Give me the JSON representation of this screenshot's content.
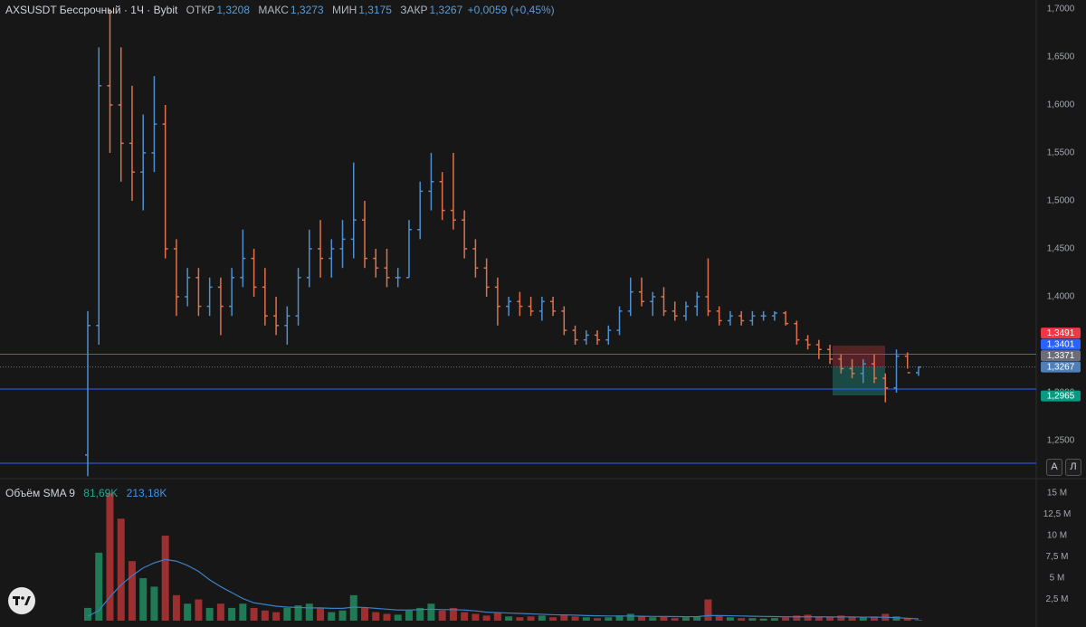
{
  "header": {
    "symbol": "AXSUSDT Бессрочный · 1Ч · Bybit",
    "ohlc": [
      {
        "label": "ОТКР",
        "value": "1,3208"
      },
      {
        "label": "МАКС",
        "value": "1,3273"
      },
      {
        "label": "МИН",
        "value": "1,3175"
      },
      {
        "label": "ЗАКР",
        "value": "1,3267"
      }
    ],
    "change": "+0,0059 (+0,45%)",
    "buttons": [
      "А",
      "Л"
    ]
  },
  "chart_data": [
    {
      "type": "ohlc",
      "up_color": "#4f8fcf",
      "down_color": "#e0714c",
      "grid": false,
      "open": [
        1.235,
        1.37,
        1.62,
        1.6,
        1.56,
        1.53,
        1.55,
        1.58,
        1.45,
        1.4,
        1.42,
        1.39,
        1.41,
        1.39,
        1.42,
        1.44,
        1.41,
        1.38,
        1.37,
        1.38,
        1.42,
        1.45,
        1.44,
        1.45,
        1.46,
        1.48,
        1.44,
        1.43,
        1.42,
        1.42,
        1.47,
        1.51,
        1.52,
        1.49,
        1.48,
        1.45,
        1.43,
        1.41,
        1.39,
        1.395,
        1.39,
        1.385,
        1.395,
        1.385,
        1.365,
        1.355,
        1.36,
        1.355,
        1.365,
        1.385,
        1.405,
        1.395,
        1.4,
        1.385,
        1.38,
        1.39,
        1.4,
        1.385,
        1.375,
        1.38,
        1.375,
        1.38,
        1.38,
        1.383,
        1.372,
        1.355,
        1.35,
        1.345,
        1.335,
        1.325,
        1.32,
        1.33,
        1.315,
        1.305,
        1.338,
        1.3208
      ],
      "high": [
        1.385,
        1.66,
        1.7,
        1.66,
        1.62,
        1.59,
        1.63,
        1.6,
        1.46,
        1.43,
        1.43,
        1.42,
        1.42,
        1.43,
        1.47,
        1.45,
        1.43,
        1.4,
        1.39,
        1.43,
        1.47,
        1.48,
        1.46,
        1.48,
        1.54,
        1.5,
        1.45,
        1.45,
        1.43,
        1.48,
        1.52,
        1.55,
        1.53,
        1.55,
        1.49,
        1.46,
        1.44,
        1.42,
        1.4,
        1.405,
        1.4,
        1.4,
        1.4,
        1.39,
        1.37,
        1.365,
        1.365,
        1.37,
        1.39,
        1.42,
        1.42,
        1.405,
        1.41,
        1.395,
        1.395,
        1.405,
        1.44,
        1.39,
        1.385,
        1.385,
        1.385,
        1.385,
        1.385,
        1.385,
        1.375,
        1.36,
        1.355,
        1.35,
        1.34,
        1.335,
        1.335,
        1.34,
        1.32,
        1.345,
        1.342,
        1.3273
      ],
      "low": [
        1.213,
        1.35,
        1.55,
        1.52,
        1.5,
        1.49,
        1.53,
        1.44,
        1.38,
        1.39,
        1.38,
        1.38,
        1.36,
        1.38,
        1.41,
        1.4,
        1.37,
        1.36,
        1.35,
        1.37,
        1.41,
        1.42,
        1.42,
        1.43,
        1.44,
        1.43,
        1.42,
        1.41,
        1.41,
        1.42,
        1.46,
        1.49,
        1.48,
        1.47,
        1.44,
        1.42,
        1.4,
        1.37,
        1.38,
        1.38,
        1.38,
        1.375,
        1.38,
        1.36,
        1.35,
        1.35,
        1.35,
        1.35,
        1.36,
        1.38,
        1.39,
        1.38,
        1.38,
        1.375,
        1.375,
        1.38,
        1.38,
        1.37,
        1.37,
        1.37,
        1.37,
        1.375,
        1.375,
        1.37,
        1.35,
        1.345,
        1.335,
        1.33,
        1.32,
        1.315,
        1.31,
        1.31,
        1.29,
        1.3,
        1.325,
        1.3175
      ],
      "close": [
        1.37,
        1.62,
        1.6,
        1.56,
        1.53,
        1.55,
        1.58,
        1.45,
        1.4,
        1.42,
        1.39,
        1.41,
        1.39,
        1.42,
        1.44,
        1.41,
        1.38,
        1.37,
        1.38,
        1.42,
        1.45,
        1.44,
        1.45,
        1.46,
        1.48,
        1.44,
        1.43,
        1.42,
        1.42,
        1.47,
        1.51,
        1.52,
        1.49,
        1.48,
        1.45,
        1.43,
        1.41,
        1.39,
        1.395,
        1.39,
        1.385,
        1.395,
        1.385,
        1.365,
        1.355,
        1.36,
        1.355,
        1.365,
        1.385,
        1.405,
        1.395,
        1.4,
        1.385,
        1.38,
        1.39,
        1.4,
        1.385,
        1.375,
        1.38,
        1.375,
        1.38,
        1.38,
        1.383,
        1.372,
        1.355,
        1.35,
        1.345,
        1.335,
        1.325,
        1.32,
        1.33,
        1.315,
        1.305,
        1.338,
        1.3208,
        1.3267
      ],
      "ylim": [
        1.2113,
        1.7094
      ],
      "yticks": [
        {
          "value": 1.25,
          "label": "1,2500"
        },
        {
          "value": 1.3,
          "label": "1,3000"
        },
        {
          "value": 1.35,
          "label": "1,3500"
        },
        {
          "value": 1.4,
          "label": "1,4000"
        },
        {
          "value": 1.45,
          "label": "1,4500"
        },
        {
          "value": 1.5,
          "label": "1,5000"
        },
        {
          "value": 1.55,
          "label": "1,5500"
        },
        {
          "value": 1.6,
          "label": "1,6000"
        },
        {
          "value": 1.65,
          "label": "1,6500"
        },
        {
          "value": 1.7,
          "label": "1,7000"
        }
      ],
      "levels": [
        1.3401,
        1.3038,
        1.2264
      ],
      "level_color": "#2962ff",
      "price_labels": [
        {
          "value": 1.3491,
          "label": "1,3491",
          "color": "#f23645"
        },
        {
          "value": 1.3401,
          "label": "1,3401",
          "color": "#2962ff"
        },
        {
          "value": 1.3371,
          "label": "1,3371",
          "color": "#6b6e78"
        },
        {
          "value": 1.3267,
          "label": "1,3267",
          "color": "#4f7fb8"
        },
        {
          "value": 1.2965,
          "label": "1,2965",
          "color": "#089981"
        }
      ]
    },
    {
      "type": "volume",
      "title": "Объём SMA 9",
      "legend_values": [
        "81,69K",
        "213,18K"
      ],
      "up_color": "#1f7a55",
      "down_color": "#9c2f2f",
      "sma_color": "#3d7fc4",
      "values": [
        1.5,
        8,
        15,
        12,
        7,
        5,
        4,
        10,
        3,
        2,
        2.5,
        1.5,
        2,
        1.5,
        2,
        1.5,
        1.2,
        1,
        1.5,
        1.8,
        2,
        1.5,
        1,
        1.2,
        3,
        1.5,
        1,
        0.8,
        0.7,
        1.2,
        1.5,
        2,
        1.2,
        1.5,
        1,
        0.8,
        0.6,
        0.9,
        0.5,
        0.4,
        0.5,
        0.6,
        0.4,
        0.7,
        0.5,
        0.4,
        0.3,
        0.4,
        0.6,
        0.8,
        0.5,
        0.4,
        0.5,
        0.3,
        0.4,
        0.5,
        2.5,
        0.6,
        0.4,
        0.3,
        0.3,
        0.25,
        0.3,
        0.4,
        0.6,
        0.7,
        0.5,
        0.4,
        0.6,
        0.5,
        0.4,
        0.5,
        0.8,
        0.5,
        0.3,
        0.08169
      ],
      "sma": [
        0.5,
        1.2,
        2.8,
        4.2,
        5.3,
        6.2,
        6.8,
        7.2,
        7.0,
        6.5,
        5.8,
        4.8,
        4.0,
        3.3,
        2.6,
        2.1,
        1.9,
        1.7,
        1.6,
        1.55,
        1.5,
        1.5,
        1.45,
        1.45,
        1.6,
        1.55,
        1.45,
        1.35,
        1.25,
        1.25,
        1.3,
        1.35,
        1.3,
        1.3,
        1.25,
        1.15,
        1.0,
        0.95,
        0.9,
        0.85,
        0.8,
        0.75,
        0.7,
        0.68,
        0.65,
        0.6,
        0.57,
        0.55,
        0.55,
        0.54,
        0.52,
        0.5,
        0.5,
        0.48,
        0.47,
        0.47,
        0.6,
        0.6,
        0.58,
        0.55,
        0.52,
        0.5,
        0.48,
        0.46,
        0.45,
        0.45,
        0.45,
        0.44,
        0.44,
        0.43,
        0.42,
        0.42,
        0.4,
        0.35,
        0.28,
        0.2132
      ],
      "ylim": [
        0,
        16.5
      ],
      "yticks": [
        {
          "value": 2.5,
          "label": "2,5 M"
        },
        {
          "value": 5,
          "label": "5 M"
        },
        {
          "value": 7.5,
          "label": "7,5 M"
        },
        {
          "value": 10,
          "label": "10 M"
        },
        {
          "value": 12.5,
          "label": "12,5 M"
        },
        {
          "value": 15,
          "label": "15 M"
        }
      ]
    }
  ]
}
